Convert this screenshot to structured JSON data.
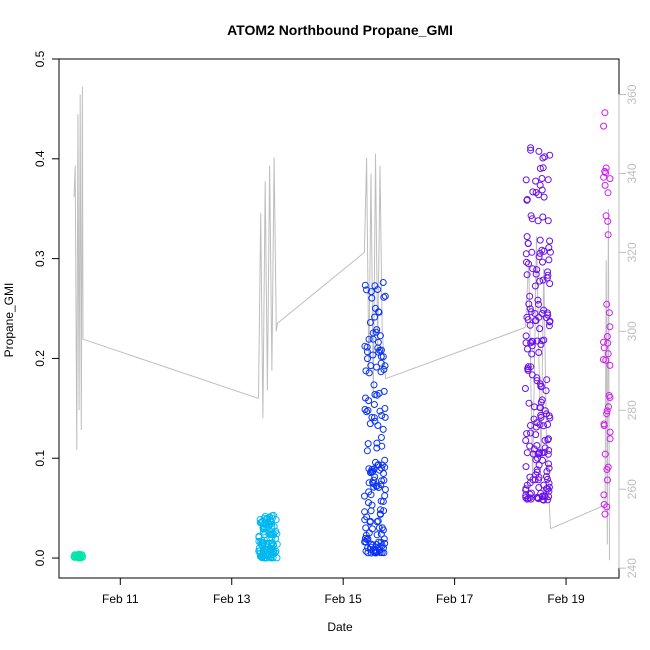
{
  "chart_data": {
    "type": "scatter",
    "title": "ATOM2 Northbound Propane_GMI",
    "xlabel": "Date",
    "ylabel": "Propane_GMI",
    "y2label": "",
    "x_ticks": [
      {
        "label": "Feb 11",
        "x": 11.0
      },
      {
        "label": "Feb 13",
        "x": 13.0
      },
      {
        "label": "Feb 15",
        "x": 15.0
      },
      {
        "label": "Feb 17",
        "x": 17.0
      },
      {
        "label": "Feb 19",
        "x": 19.0
      }
    ],
    "xlim": [
      9.9,
      19.95
    ],
    "ylim": [
      -0.02,
      0.5
    ],
    "y_ticks": [
      "0.0",
      "0.1",
      "0.2",
      "0.3",
      "0.4",
      "0.5"
    ],
    "y2lim": [
      237.5,
      369.0
    ],
    "y2_ticks": [
      "240",
      "260",
      "280",
      "300",
      "320",
      "340",
      "360"
    ],
    "y2_color": "#bebebe",
    "line_color": "#bebebe",
    "grid": false,
    "series": [
      {
        "color": "#00E5A8",
        "clusters": [
          {
            "t0": 10.15,
            "t1": 10.33,
            "ymin": 0.0,
            "ymax": 0.004,
            "n": 28
          }
        ]
      },
      {
        "color": "#00B8F0",
        "clusters": [
          {
            "t0": 13.48,
            "t1": 13.82,
            "ymin": 0.0,
            "ymax": 0.043,
            "n": 110
          }
        ]
      },
      {
        "color": "#0A32F2",
        "clusters": [
          {
            "t0": 15.38,
            "t1": 15.76,
            "ymin": 0.005,
            "ymax": 0.277,
            "n": 160
          }
        ]
      },
      {
        "color": "#6A10E8",
        "clusters": [
          {
            "t0": 18.27,
            "t1": 18.72,
            "ymin": 0.058,
            "ymax": 0.427,
            "n": 190
          }
        ]
      },
      {
        "color": "#D21CF2",
        "clusters": [
          {
            "t0": 19.67,
            "t1": 19.8,
            "ymin": 0.044,
            "ymax": 0.484,
            "n": 40
          }
        ]
      }
    ],
    "secondary_line": {
      "segments": [
        {
          "x": [
            10.17,
            10.19,
            10.22,
            10.24,
            10.26,
            10.28,
            10.3,
            10.32,
            10.33
          ],
          "y": [
            334,
            342,
            270,
            355,
            280,
            360,
            275,
            362,
            298
          ]
        },
        {
          "x": [
            10.33,
            13.48
          ],
          "y": [
            298,
            283
          ]
        },
        {
          "x": [
            13.48,
            13.52,
            13.56,
            13.6,
            13.64,
            13.68,
            13.72,
            13.76,
            13.8,
            13.82
          ],
          "y": [
            283,
            330,
            278,
            338,
            285,
            342,
            290,
            344,
            300,
            302
          ]
        },
        {
          "x": [
            13.82,
            15.38
          ],
          "y": [
            302,
            320
          ]
        },
        {
          "x": [
            15.38,
            15.42,
            15.46,
            15.5,
            15.54,
            15.58,
            15.62,
            15.66,
            15.7,
            15.76
          ],
          "y": [
            320,
            344,
            290,
            340,
            283,
            345,
            295,
            342,
            300,
            288
          ]
        },
        {
          "x": [
            15.76,
            18.27
          ],
          "y": [
            288,
            301
          ]
        },
        {
          "x": [
            18.27,
            18.33,
            18.4,
            18.47,
            18.55,
            18.6,
            18.65,
            18.72
          ],
          "y": [
            301,
            318,
            262,
            324,
            268,
            316,
            270,
            250
          ]
        },
        {
          "x": [
            18.72,
            19.7
          ],
          "y": [
            250,
            256
          ]
        },
        {
          "x": [
            19.7,
            19.72,
            19.74,
            19.76,
            19.78
          ],
          "y": [
            256,
            318,
            246,
            331,
            242
          ]
        }
      ]
    }
  }
}
